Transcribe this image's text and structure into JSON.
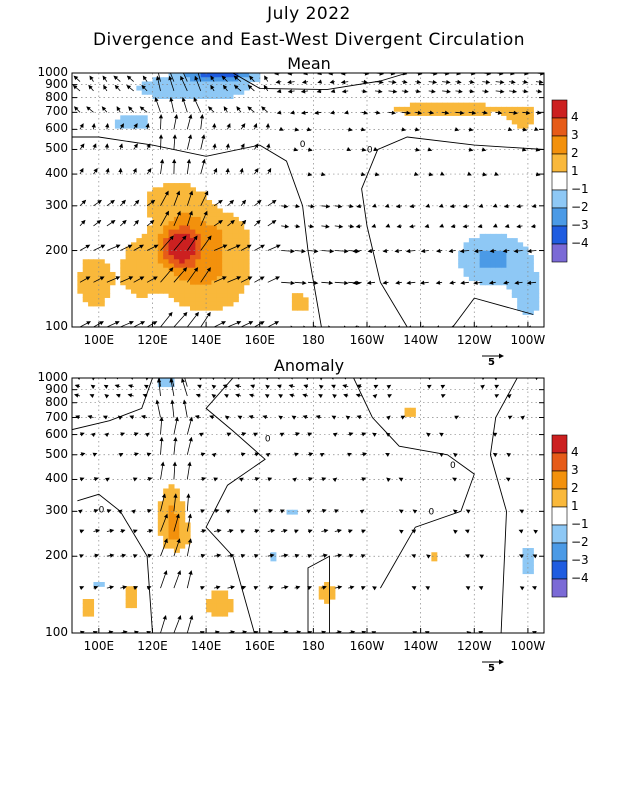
{
  "header": {
    "date": "July 2022",
    "title": "Divergence and East-West Divergent Circulation"
  },
  "colors": {
    "pos": [
      "#ffffff",
      "#f9b83b",
      "#f3910c",
      "#e65b18",
      "#cc2020"
    ],
    "neg": [
      "#ffffff",
      "#8ec8f5",
      "#4b9ae6",
      "#1f5ce0",
      "#7b6ad6"
    ]
  },
  "chart_data": [
    {
      "type": "heatmap",
      "title": "Mean",
      "xlim": [
        90,
        266
      ],
      "x_ticks": [
        {
          "lon": 100,
          "label": "100E"
        },
        {
          "lon": 120,
          "label": "120E"
        },
        {
          "lon": 140,
          "label": "140E"
        },
        {
          "lon": 160,
          "label": "160E"
        },
        {
          "lon": 180,
          "label": "180"
        },
        {
          "lon": 200,
          "label": "160W"
        },
        {
          "lon": 220,
          "label": "140W"
        },
        {
          "lon": 240,
          "label": "120W"
        },
        {
          "lon": 260,
          "label": "100W"
        }
      ],
      "y_scale": "log",
      "ylim": [
        1000,
        100
      ],
      "y_ticks": [
        "100",
        "200",
        "300",
        "400",
        "500",
        "600",
        "700",
        "800",
        "900",
        "1000"
      ],
      "colorbar": {
        "levels": [
          "4",
          "3",
          "2",
          "1",
          "−1",
          "−2",
          "−3",
          "−4"
        ]
      },
      "contour_labels": [
        "0",
        "0"
      ],
      "vector_scale": "5",
      "blobs": [
        {
          "lon": 98,
          "p": 150,
          "rx": 9,
          "ry": 0.35,
          "v": 1.5
        },
        {
          "lon": 115,
          "p": 170,
          "rx": 7,
          "ry": 0.3,
          "v": 1.5
        },
        {
          "lon": 140,
          "p": 160,
          "rx": 18,
          "ry": 0.38,
          "v": 2.1
        },
        {
          "lon": 130,
          "p": 205,
          "rx": 7,
          "ry": 0.18,
          "v": 3.8
        },
        {
          "lon": 140,
          "p": 240,
          "rx": 18,
          "ry": 0.22,
          "v": 1.4
        },
        {
          "lon": 128,
          "p": 320,
          "rx": 14,
          "ry": 0.2,
          "v": 1.6
        },
        {
          "lon": 175,
          "p": 125,
          "rx": 6,
          "ry": 0.15,
          "v": 1.3
        },
        {
          "lon": 247,
          "p": 185,
          "rx": 14,
          "ry": 0.25,
          "v": -2.3
        },
        {
          "lon": 260,
          "p": 130,
          "rx": 6,
          "ry": 0.25,
          "v": -1.5
        },
        {
          "lon": 135,
          "p": 870,
          "rx": 28,
          "ry": 0.15,
          "v": -1.7
        },
        {
          "lon": 112,
          "p": 640,
          "rx": 10,
          "ry": 0.12,
          "v": -1.4
        },
        {
          "lon": 145,
          "p": 980,
          "rx": 12,
          "ry": 0.05,
          "v": -3.1
        },
        {
          "lon": 230,
          "p": 720,
          "rx": 30,
          "ry": 0.08,
          "v": 1.6
        },
        {
          "lon": 258,
          "p": 650,
          "rx": 6,
          "ry": 0.12,
          "v": 1.4
        }
      ]
    },
    {
      "type": "heatmap",
      "title": "Anomaly",
      "xlim": [
        90,
        266
      ],
      "x_ticks": [
        {
          "lon": 100,
          "label": "100E"
        },
        {
          "lon": 120,
          "label": "120E"
        },
        {
          "lon": 140,
          "label": "140E"
        },
        {
          "lon": 160,
          "label": "160E"
        },
        {
          "lon": 180,
          "label": "180"
        },
        {
          "lon": 200,
          "label": "160W"
        },
        {
          "lon": 220,
          "label": "140W"
        },
        {
          "lon": 240,
          "label": "120W"
        },
        {
          "lon": 260,
          "label": "100W"
        }
      ],
      "y_scale": "log",
      "ylim": [
        1000,
        100
      ],
      "y_ticks": [
        "100",
        "200",
        "300",
        "400",
        "500",
        "600",
        "700",
        "800",
        "900",
        "1000"
      ],
      "colorbar": {
        "levels": [
          "4",
          "3",
          "2",
          "1",
          "−1",
          "−2",
          "−3",
          "−4"
        ]
      },
      "contour_labels": [
        "0",
        "0",
        "0",
        "0"
      ],
      "vector_scale": "5",
      "blobs": [
        {
          "lon": 96,
          "p": 125,
          "rx": 5,
          "ry": 0.15,
          "v": 1.4
        },
        {
          "lon": 112,
          "p": 140,
          "rx": 5,
          "ry": 0.2,
          "v": 1.3
        },
        {
          "lon": 145,
          "p": 130,
          "rx": 8,
          "ry": 0.2,
          "v": 1.4
        },
        {
          "lon": 127,
          "p": 300,
          "rx": 5,
          "ry": 0.28,
          "v": 2.1
        },
        {
          "lon": 130,
          "p": 240,
          "rx": 6,
          "ry": 0.15,
          "v": 1.4
        },
        {
          "lon": 100,
          "p": 155,
          "rx": 3,
          "ry": 0.12,
          "v": -1.3
        },
        {
          "lon": 185,
          "p": 145,
          "rx": 5,
          "ry": 0.15,
          "v": 1.4
        },
        {
          "lon": 225,
          "p": 200,
          "rx": 4,
          "ry": 0.1,
          "v": 1.3
        },
        {
          "lon": 260,
          "p": 190,
          "rx": 4,
          "ry": 0.2,
          "v": -1.5
        },
        {
          "lon": 125,
          "p": 950,
          "rx": 6,
          "ry": 0.07,
          "v": -1.5
        },
        {
          "lon": 216,
          "p": 730,
          "rx": 4,
          "ry": 0.06,
          "v": 1.4
        },
        {
          "lon": 165,
          "p": 200,
          "rx": 5,
          "ry": 0.06,
          "v": -1.2
        },
        {
          "lon": 172,
          "p": 300,
          "rx": 3,
          "ry": 0.05,
          "v": -1.2
        }
      ]
    }
  ]
}
